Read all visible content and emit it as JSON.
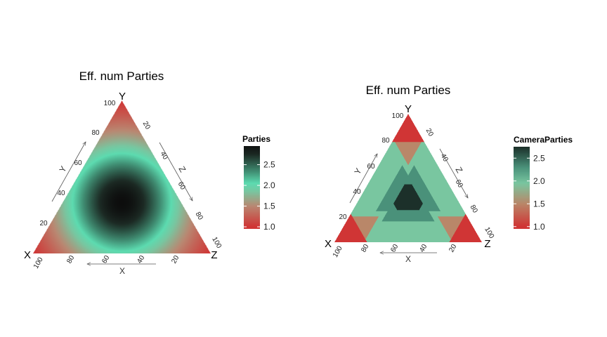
{
  "chart_data": [
    {
      "type": "ternary-heatmap",
      "title": "Eff. num Parties",
      "vertex_labels": {
        "top": "Y",
        "left": "X",
        "right": "Z"
      },
      "axis_labels": {
        "left": "Y",
        "right": "Z",
        "bottom": "X"
      },
      "ticks": {
        "left": [
          "20",
          "40",
          "60",
          "80",
          "100"
        ],
        "right": [
          "20",
          "40",
          "60",
          "80",
          "100"
        ],
        "bottom": [
          "20",
          "40",
          "60",
          "80",
          "100"
        ]
      },
      "value_description": "Effective number of parties computed from shares X, Y, Z; max 3 at the centroid, 1 at vertices",
      "value_range": [
        1,
        3
      ],
      "legend": {
        "title": "Parties",
        "ticks": [
          "1.0",
          "1.5",
          "2.0",
          "2.5"
        ],
        "tick_values": [
          1.0,
          1.5,
          2.0,
          2.5
        ],
        "range": [
          0.95,
          2.95
        ]
      },
      "colors": [
        "#d03535",
        "#b98872",
        "#79c6a0",
        "#5ddbb0",
        "#3f8a70",
        "#1c2a24",
        "#0d0d0d"
      ]
    },
    {
      "type": "ternary-heatmap",
      "title": "Eff. num Parties",
      "vertex_labels": {
        "top": "Y",
        "left": "X",
        "right": "Z"
      },
      "axis_labels": {
        "left": "Y",
        "right": "Z",
        "bottom": "X"
      },
      "ticks": {
        "left": [
          "20",
          "40",
          "60",
          "80",
          "100"
        ],
        "right": [
          "20",
          "40",
          "60",
          "80",
          "100"
        ],
        "bottom": [
          "20",
          "40",
          "60",
          "80",
          "100"
        ]
      },
      "value_description": "Number of parties represented in chamber (seat allocation), discrete regions",
      "regions": [
        {
          "name": "single-party corners",
          "value": 1,
          "color": "#d03535"
        },
        {
          "name": "two-party edges",
          "value": 1.67,
          "color": "#b98769"
        },
        {
          "name": "two-party inner",
          "value": 2,
          "color": "#79c6a0"
        },
        {
          "name": "two-and-half",
          "value": 2.33,
          "color": "#4a917a"
        },
        {
          "name": "three-party center",
          "value": 2.75,
          "color": "#1c302a"
        }
      ],
      "legend": {
        "title": "CameraParties",
        "ticks": [
          "1.0",
          "1.5",
          "2.0",
          "2.5"
        ],
        "tick_values": [
          1.0,
          1.5,
          2.0,
          2.5
        ],
        "range": [
          0.95,
          2.75
        ]
      },
      "colors": [
        "#d03535",
        "#b98769",
        "#79c6a0",
        "#4a917a",
        "#1c302a"
      ]
    }
  ]
}
